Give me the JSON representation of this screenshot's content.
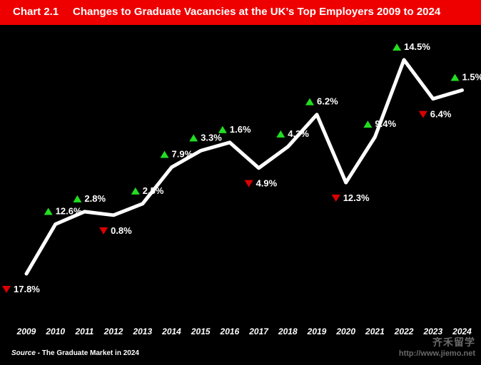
{
  "header": {
    "chart_number": "Chart 2.1",
    "title": "Changes to Graduate Vacancies at the UK’s Top Employers 2009 to 2024"
  },
  "source": {
    "prefix": "Source",
    "text": " - The Graduate Market in 2024"
  },
  "watermark": {
    "logo_text": "齐禾留学",
    "url": "http://www.jiemo.net"
  },
  "colors": {
    "background": "#000000",
    "header": "#ee0000",
    "line": "#ffffff",
    "up": "#22dd22",
    "down": "#dd0000"
  },
  "chart_data": {
    "type": "line",
    "title": "Changes to Graduate Vacancies at the UK’s Top Employers 2009 to 2024",
    "x": [
      "2009",
      "2010",
      "2011",
      "2012",
      "2013",
      "2014",
      "2015",
      "2016",
      "2017",
      "2018",
      "2019",
      "2020",
      "2021",
      "2022",
      "2023",
      "2024"
    ],
    "pct_change": [
      "17.8%",
      "12.6%",
      "2.8%",
      "0.8%",
      "2.5%",
      "7.9%",
      "3.3%",
      "1.6%",
      "4.9%",
      "4.3%",
      "6.2%",
      "12.3%",
      "9.4%",
      "14.5%",
      "6.4%",
      "1.5%"
    ],
    "direction": [
      "down",
      "up",
      "up",
      "down",
      "up",
      "up",
      "up",
      "up",
      "down",
      "up",
      "up",
      "down",
      "up",
      "up",
      "down",
      "up"
    ],
    "index_relative": [
      100,
      112.6,
      115.8,
      114.9,
      117.8,
      127.1,
      131.3,
      133.4,
      126.9,
      132.3,
      140.5,
      123.2,
      134.8,
      154.4,
      144.5,
      146.7
    ],
    "grid": false,
    "legend": "none"
  }
}
